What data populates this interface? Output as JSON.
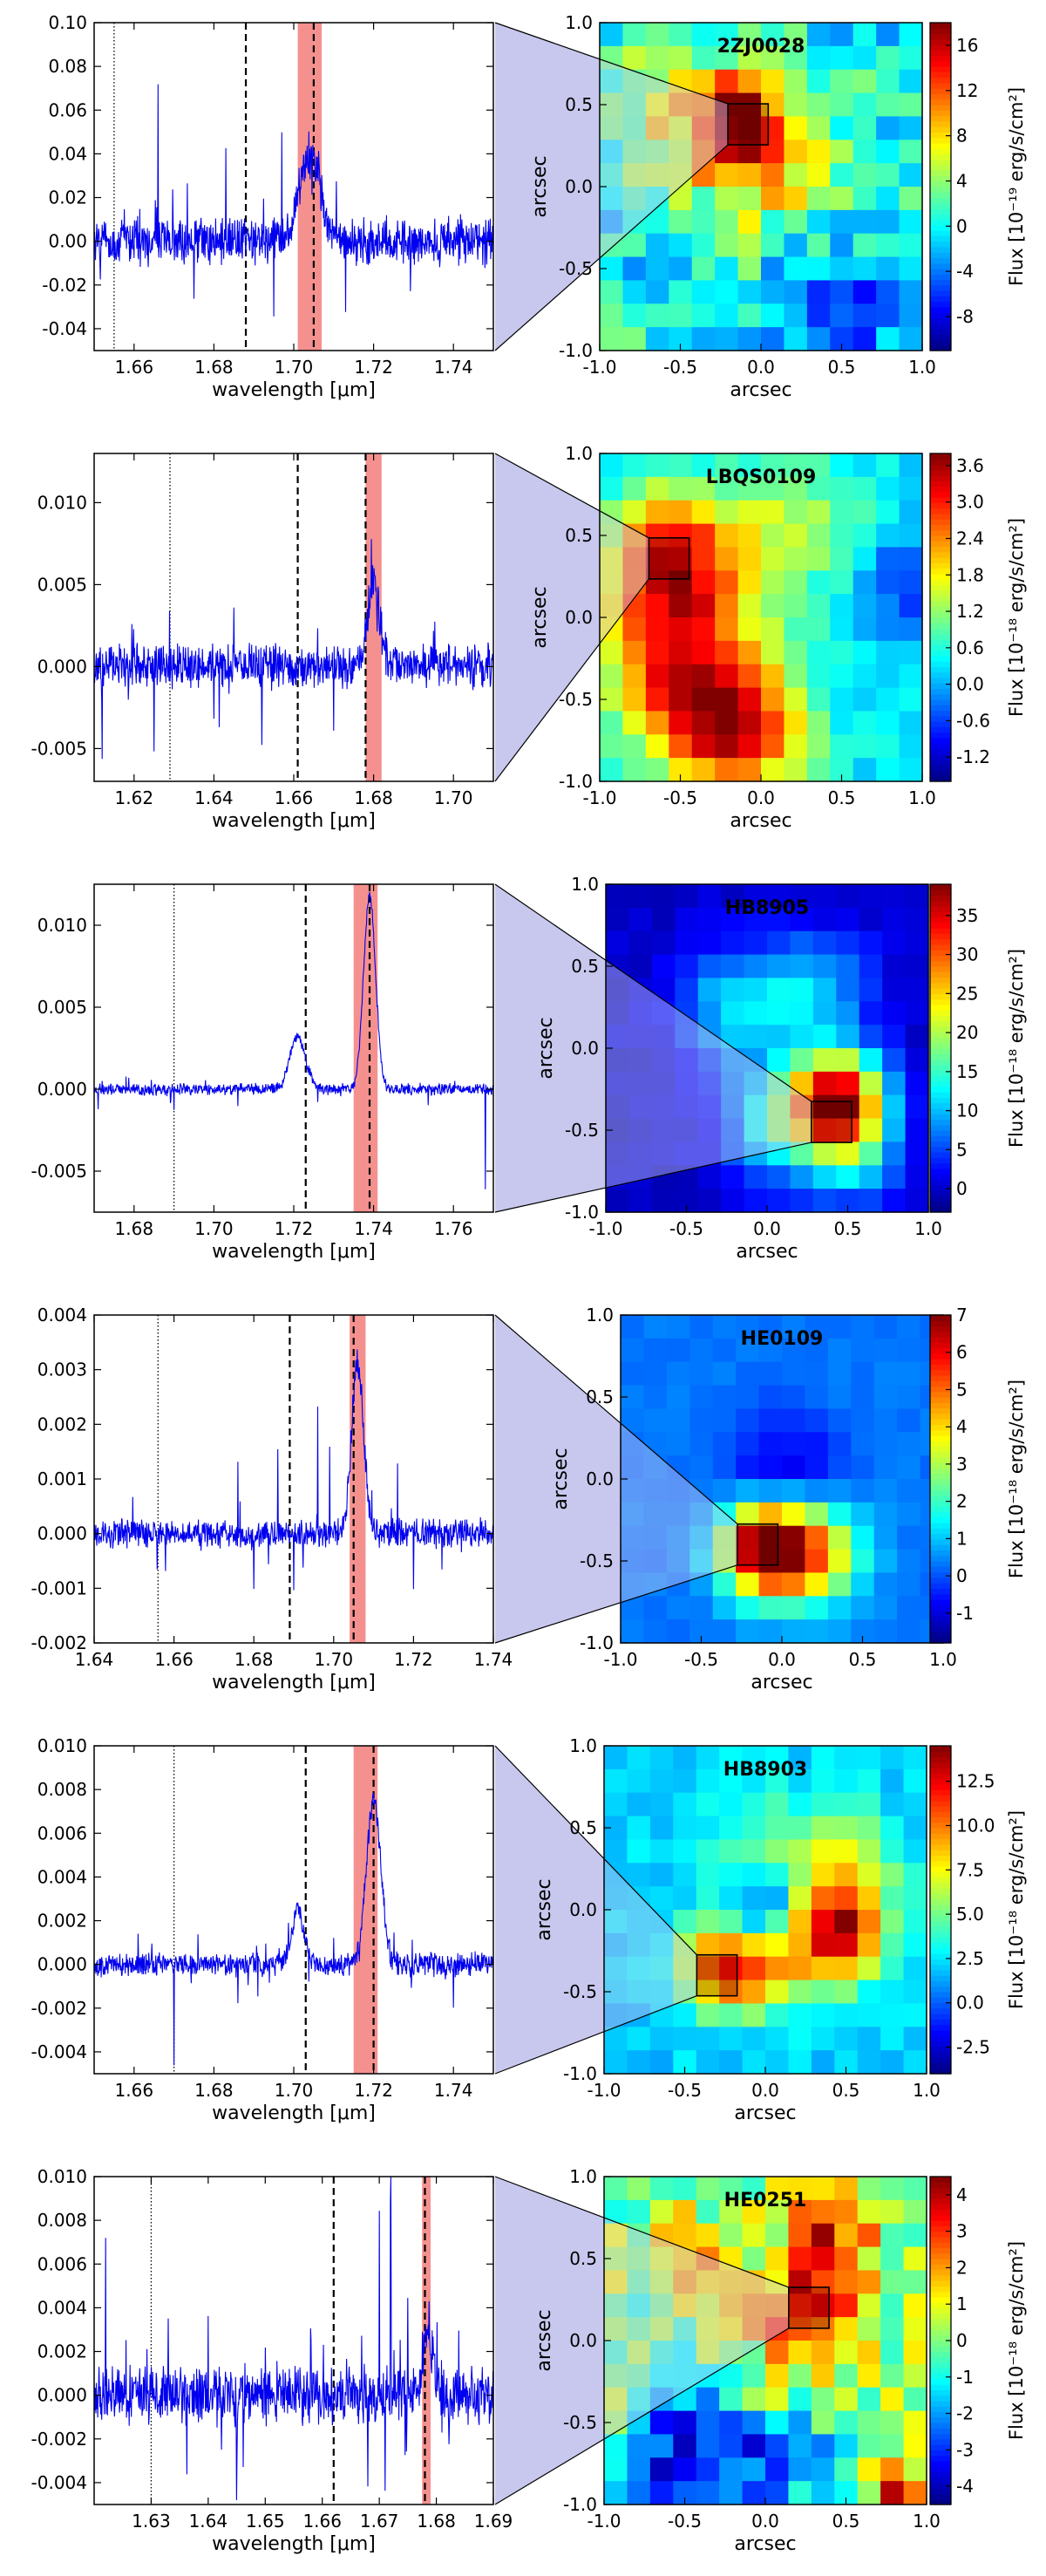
{
  "chart_data": [
    {
      "type": "line",
      "panel": "spectrum",
      "object": "2ZJ0028",
      "xlabel": "wavelength [μm]",
      "ylabel": "",
      "xlim": [
        1.65,
        1.75
      ],
      "ylim": [
        -0.05,
        0.1
      ],
      "xticks": [
        "1.66",
        "1.68",
        "1.70",
        "1.72",
        "1.74"
      ],
      "yticks": [
        "-0.04",
        "-0.02",
        "0.00",
        "0.02",
        "0.04",
        "0.06",
        "0.08",
        "0.10"
      ],
      "noise": 0.009,
      "dotted_line": 1.655,
      "dashed_lines": [
        1.688,
        1.705
      ],
      "highlight": [
        1.701,
        1.707
      ],
      "line_feature": {
        "center": 1.704,
        "amplitude": 0.04,
        "width": 0.0025
      },
      "spikes": [
        [
          1.666,
          0.065
        ],
        [
          1.683,
          0.04
        ],
        [
          1.697,
          0.045
        ],
        [
          1.675,
          -0.03
        ],
        [
          1.695,
          -0.04
        ],
        [
          1.713,
          -0.025
        ]
      ]
    },
    {
      "type": "heatmap",
      "panel": "map",
      "title": "2ZJ0028",
      "xlabel": "arcsec",
      "ylabel": "arcsec",
      "xlim": [
        -1,
        1
      ],
      "ylim": [
        -1,
        1
      ],
      "xticks": [
        "-1.0",
        "-0.5",
        "0.0",
        "0.5",
        "1.0"
      ],
      "yticks": [
        "-1.0",
        "-0.5",
        "0.0",
        "0.5",
        "1.0"
      ],
      "colorbar_label": "Flux [10⁻¹⁹ erg/s/cm²]",
      "vmin": -11,
      "vmax": 18,
      "cbar_ticks": [
        "-8",
        "-4",
        "0",
        "4",
        "8",
        "12",
        "16"
      ],
      "background": 0,
      "noise": 3.5,
      "blobs": [
        [
          -0.1,
          0.35,
          17,
          0.22
        ],
        [
          -0.5,
          0.45,
          6,
          0.3
        ],
        [
          0.1,
          0.0,
          5,
          0.3
        ],
        [
          0.5,
          -0.8,
          -6,
          0.3
        ]
      ],
      "box": [
        -0.08,
        0.38
      ],
      "gridsize": 14
    },
    {
      "type": "line",
      "panel": "spectrum",
      "object": "LBQS0109",
      "xlabel": "wavelength [μm]",
      "ylabel": "",
      "xlim": [
        1.61,
        1.71
      ],
      "ylim": [
        -0.007,
        0.013
      ],
      "xticks": [
        "1.62",
        "1.64",
        "1.66",
        "1.68",
        "1.70"
      ],
      "yticks": [
        "-0.005",
        "0.000",
        "0.005",
        "0.010"
      ],
      "noise": 0.0011,
      "dotted_line": 1.629,
      "dashed_lines": [
        1.661,
        1.678
      ],
      "highlight": [
        1.678,
        1.682
      ],
      "line_feature": {
        "center": 1.68,
        "amplitude": 0.005,
        "width": 0.0015
      },
      "spikes": [
        [
          1.612,
          -0.0065
        ],
        [
          1.625,
          -0.005
        ],
        [
          1.64,
          -0.0045
        ],
        [
          1.652,
          -0.004
        ],
        [
          1.67,
          -0.0045
        ],
        [
          1.695,
          0.0015
        ]
      ]
    },
    {
      "type": "heatmap",
      "panel": "map",
      "title": "LBQS0109",
      "xlabel": "arcsec",
      "ylabel": "arcsec",
      "xlim": [
        -1,
        1
      ],
      "ylim": [
        -1,
        1
      ],
      "xticks": [
        "-1.0",
        "-0.5",
        "0.0",
        "0.5",
        "1.0"
      ],
      "yticks": [
        "-1.0",
        "-0.5",
        "0.0",
        "0.5",
        "1.0"
      ],
      "colorbar_label": "Flux [10⁻¹⁸ erg/s/cm²]",
      "vmin": -1.6,
      "vmax": 3.8,
      "cbar_ticks": [
        "-1.2",
        "-0.6",
        "0.0",
        "0.6",
        "1.2",
        "1.8",
        "2.4",
        "3.0",
        "3.6"
      ],
      "background": 0.3,
      "noise": 0.25,
      "blobs": [
        [
          -0.55,
          0.35,
          2.8,
          0.3
        ],
        [
          -0.5,
          -0.3,
          2.4,
          0.35
        ],
        [
          -0.15,
          -0.7,
          2.6,
          0.3
        ],
        [
          0.2,
          0.55,
          1.0,
          0.3
        ],
        [
          0.9,
          0.2,
          -1.0,
          0.2
        ]
      ],
      "box": [
        -0.57,
        0.36
      ],
      "gridsize": 14
    },
    {
      "type": "line",
      "panel": "spectrum",
      "object": "HB8905",
      "xlabel": "wavelength [μm]",
      "ylabel": "",
      "xlim": [
        1.67,
        1.77
      ],
      "ylim": [
        -0.0075,
        0.0125
      ],
      "xticks": [
        "1.68",
        "1.70",
        "1.72",
        "1.74",
        "1.76"
      ],
      "yticks": [
        "-0.005",
        "0.000",
        "0.005",
        "0.010"
      ],
      "noise": 0.0003,
      "dotted_line": 1.69,
      "dashed_lines": [
        1.723,
        1.739
      ],
      "highlight": [
        1.735,
        1.741
      ],
      "line_feature": {
        "center": 1.739,
        "amplitude": 0.0118,
        "width": 0.0015
      },
      "second_feature": {
        "center": 1.721,
        "amplitude": 0.0032,
        "width": 0.002
      },
      "spikes": [
        [
          1.671,
          -0.0012
        ],
        [
          1.69,
          -0.001
        ],
        [
          1.706,
          -0.001
        ],
        [
          1.726,
          -0.0012
        ],
        [
          1.768,
          -0.006
        ]
      ]
    },
    {
      "type": "heatmap",
      "panel": "map",
      "title": "HB8905",
      "xlabel": "arcsec",
      "ylabel": "arcsec",
      "xlim": [
        -1,
        1
      ],
      "ylim": [
        -1,
        1
      ],
      "xticks": [
        "-1.0",
        "-0.5",
        "0.0",
        "0.5",
        "1.0"
      ],
      "yticks": [
        "-1.0",
        "-0.5",
        "0.0",
        "0.5",
        "1.0"
      ],
      "colorbar_label": "Flux [10⁻¹⁸ erg/s/cm²]",
      "vmin": -3,
      "vmax": 39,
      "cbar_ticks": [
        "0",
        "5",
        "10",
        "15",
        "20",
        "25",
        "30",
        "35"
      ],
      "background": 0,
      "noise": 1.0,
      "blobs": [
        [
          0.45,
          -0.3,
          33,
          0.2
        ],
        [
          0.1,
          -0.45,
          15,
          0.25
        ],
        [
          -0.2,
          0.25,
          11,
          0.25
        ],
        [
          0.3,
          0.35,
          10,
          0.25
        ],
        [
          0.55,
          -0.65,
          12,
          0.2
        ]
      ],
      "box": [
        0.4,
        -0.45
      ],
      "gridsize": 14
    },
    {
      "type": "line",
      "panel": "spectrum",
      "object": "HE0109",
      "xlabel": "wavelength [μm]",
      "ylabel": "",
      "xlim": [
        1.64,
        1.74
      ],
      "ylim": [
        -0.002,
        0.004
      ],
      "xticks": [
        "1.64",
        "1.66",
        "1.68",
        "1.70",
        "1.72",
        "1.74"
      ],
      "yticks": [
        "-0.002",
        "-0.001",
        "0.000",
        "0.001",
        "0.002",
        "0.003",
        "0.004"
      ],
      "noise": 0.00022,
      "dotted_line": 1.656,
      "dashed_lines": [
        1.689,
        1.705
      ],
      "highlight": [
        1.704,
        1.708
      ],
      "line_feature": {
        "center": 1.706,
        "amplitude": 0.0031,
        "width": 0.0015
      },
      "spikes": [
        [
          1.676,
          0.0015
        ],
        [
          1.686,
          0.0015
        ],
        [
          1.696,
          0.0023
        ],
        [
          1.699,
          0.0016
        ],
        [
          1.716,
          0.0012
        ],
        [
          1.68,
          -0.001
        ],
        [
          1.69,
          -0.0009
        ],
        [
          1.72,
          -0.001
        ]
      ]
    },
    {
      "type": "heatmap",
      "panel": "map",
      "title": "HE0109",
      "xlabel": "arcsec",
      "ylabel": "arcsec",
      "xlim": [
        -1,
        1
      ],
      "ylim": [
        -1,
        1
      ],
      "xticks": [
        "-1.0",
        "-0.5",
        "0.0",
        "0.5",
        "1.0"
      ],
      "yticks": [
        "-1.0",
        "-0.5",
        "0.0",
        "0.5",
        "1.0"
      ],
      "colorbar_label": "Flux [10⁻¹⁸ erg/s/cm²]",
      "vmin": -1.8,
      "vmax": 7,
      "cbar_ticks": [
        "-1",
        "0",
        "1",
        "2",
        "3",
        "4",
        "5",
        "6",
        "7"
      ],
      "background": 0.3,
      "noise": 0.15,
      "blobs": [
        [
          -0.1,
          -0.42,
          6.8,
          0.2
        ],
        [
          0.2,
          -0.45,
          3.5,
          0.22
        ],
        [
          0.0,
          0.0,
          -1.5,
          0.25
        ]
      ],
      "box": [
        -0.15,
        -0.4
      ],
      "gridsize": 14
    },
    {
      "type": "line",
      "panel": "spectrum",
      "object": "HB8903",
      "xlabel": "wavelength [μm]",
      "ylabel": "",
      "xlim": [
        1.65,
        1.75
      ],
      "ylim": [
        -0.005,
        0.01
      ],
      "xticks": [
        "1.66",
        "1.68",
        "1.70",
        "1.72",
        "1.74"
      ],
      "yticks": [
        "-0.004",
        "-0.002",
        "0.000",
        "0.002",
        "0.004",
        "0.006",
        "0.008",
        "0.010"
      ],
      "noise": 0.00045,
      "dotted_line": 1.67,
      "dashed_lines": [
        1.703,
        1.72
      ],
      "highlight": [
        1.715,
        1.721
      ],
      "line_feature": {
        "center": 1.72,
        "amplitude": 0.0075,
        "width": 0.0018
      },
      "second_feature": {
        "center": 1.701,
        "amplitude": 0.0025,
        "width": 0.0015
      },
      "spikes": [
        [
          1.661,
          0.0015
        ],
        [
          1.67,
          -0.0045
        ],
        [
          1.676,
          0.0012
        ],
        [
          1.686,
          -0.0015
        ],
        [
          1.693,
          0.0025
        ],
        [
          1.71,
          0.0017
        ],
        [
          1.74,
          -0.0015
        ]
      ]
    },
    {
      "type": "heatmap",
      "panel": "map",
      "title": "HB8903",
      "xlabel": "arcsec",
      "ylabel": "arcsec",
      "xlim": [
        -1,
        1
      ],
      "ylim": [
        -1,
        1
      ],
      "xticks": [
        "-1.0",
        "-0.5",
        "0.0",
        "0.5",
        "1.0"
      ],
      "yticks": [
        "-1.0",
        "-0.5",
        "0.0",
        "0.5",
        "1.0"
      ],
      "colorbar_label": "Flux [10⁻¹⁸ erg/s/cm²]",
      "vmin": -4,
      "vmax": 14.5,
      "cbar_ticks": [
        "-2.5",
        "0.0",
        "2.5",
        "5.0",
        "7.5",
        "10.0",
        "12.5"
      ],
      "background": 2,
      "noise": 0.8,
      "blobs": [
        [
          0.45,
          -0.15,
          11,
          0.2
        ],
        [
          -0.3,
          -0.35,
          8,
          0.18
        ],
        [
          0.0,
          -0.35,
          6,
          0.2
        ],
        [
          0.0,
          0.0,
          -5,
          0.18
        ],
        [
          0.0,
          0.3,
          3,
          0.3
        ],
        [
          0.5,
          0.25,
          4,
          0.25
        ]
      ],
      "box": [
        -0.3,
        -0.4
      ],
      "gridsize": 14
    },
    {
      "type": "line",
      "panel": "spectrum",
      "object": "HE0251",
      "xlabel": "wavelength [μm]",
      "ylabel": "",
      "xlim": [
        1.62,
        1.69
      ],
      "ylim": [
        -0.005,
        0.01
      ],
      "xticks": [
        "1.63",
        "1.64",
        "1.65",
        "1.66",
        "1.67",
        "1.68",
        "1.69"
      ],
      "yticks": [
        "-0.004",
        "-0.002",
        "0.000",
        "0.002",
        "0.004",
        "0.006",
        "0.008",
        "0.010"
      ],
      "noise": 0.0011,
      "dotted_line": 1.63,
      "dashed_lines": [
        1.662,
        1.678
      ],
      "highlight": [
        1.6775,
        1.679
      ],
      "line_feature": {
        "center": 1.6785,
        "amplitude": 0.003,
        "width": 0.001
      },
      "spikes": [
        [
          1.622,
          0.0075
        ],
        [
          1.633,
          0.004
        ],
        [
          1.64,
          0.004
        ],
        [
          1.645,
          -0.0035
        ],
        [
          1.658,
          0.0025
        ],
        [
          1.67,
          0.0095
        ],
        [
          1.672,
          0.0095
        ],
        [
          1.668,
          -0.0045
        ],
        [
          1.671,
          -0.005
        ],
        [
          1.675,
          0.004
        ],
        [
          1.681,
          -0.003
        ]
      ]
    },
    {
      "type": "heatmap",
      "panel": "map",
      "title": "HE0251",
      "xlabel": "arcsec",
      "ylabel": "arcsec",
      "xlim": [
        -1,
        1
      ],
      "ylim": [
        -1,
        1
      ],
      "xticks": [
        "-1.0",
        "-0.5",
        "0.0",
        "0.5",
        "1.0"
      ],
      "yticks": [
        "-1.0",
        "-0.5",
        "0.0",
        "0.5",
        "1.0"
      ],
      "colorbar_label": "Flux [10⁻¹⁸ erg/s/cm²]",
      "vmin": -4.5,
      "vmax": 4.5,
      "cbar_ticks": [
        "-4",
        "-3",
        "-2",
        "-1",
        "0",
        "1",
        "2",
        "3",
        "4"
      ],
      "background": 0,
      "noise": 1.2,
      "blobs": [
        [
          0.3,
          0.2,
          3.5,
          0.25
        ],
        [
          0.4,
          0.65,
          2.5,
          0.2
        ],
        [
          -0.5,
          0.5,
          2.0,
          0.2
        ],
        [
          -0.5,
          -0.7,
          -3.5,
          0.25
        ],
        [
          0.1,
          -0.75,
          -3,
          0.2
        ],
        [
          0.8,
          -0.9,
          3,
          0.12
        ]
      ],
      "box": [
        0.27,
        0.2
      ],
      "gridsize": 14
    }
  ]
}
